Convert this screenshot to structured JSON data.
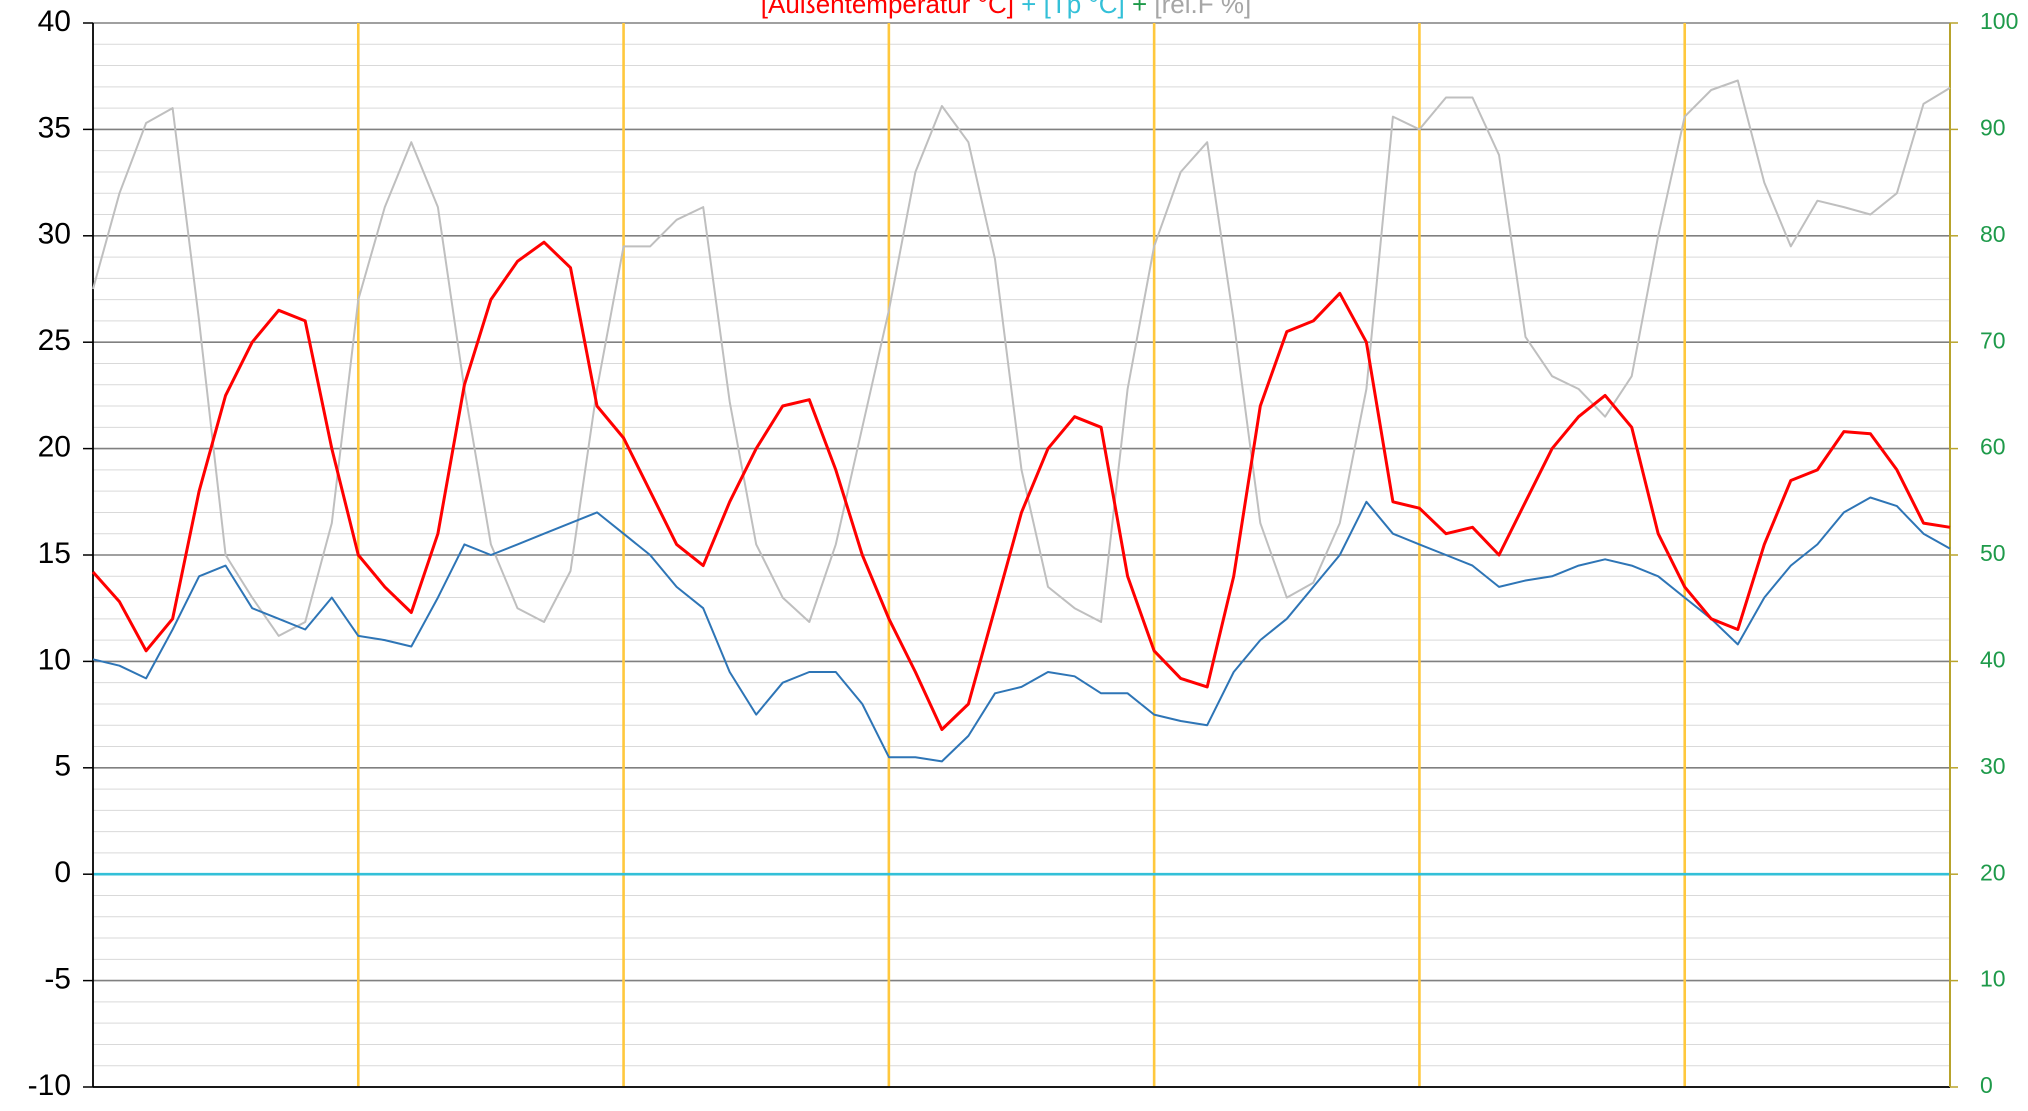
{
  "chart_data": {
    "type": "line",
    "title_parts": [
      {
        "text": "[Außentemperatur °C]",
        "color": "#ff0000"
      },
      {
        "text": " + ",
        "color": "#33c0d8"
      },
      {
        "text": "[Tp °C]",
        "color": "#33c0d8"
      },
      {
        "text": " + ",
        "color": "#1e9a4a"
      },
      {
        "text": "[rel.F %]",
        "color": "#a6a6a6"
      }
    ],
    "x": [
      0,
      0.1,
      0.2,
      0.3,
      0.4,
      0.5,
      0.6,
      0.7,
      0.8,
      0.9,
      1,
      1.1,
      1.2,
      1.3,
      1.4,
      1.5,
      1.6,
      1.7,
      1.8,
      1.9,
      2,
      2.1,
      2.2,
      2.3,
      2.4,
      2.5,
      2.6,
      2.7,
      2.8,
      2.9,
      3,
      3.1,
      3.2,
      3.3,
      3.4,
      3.5,
      3.6,
      3.7,
      3.8,
      3.9,
      4,
      4.1,
      4.2,
      4.3,
      4.4,
      4.5,
      4.6,
      4.7,
      4.8,
      4.9,
      5,
      5.1,
      5.2,
      5.3,
      5.4,
      5.5,
      5.6,
      5.7,
      5.8,
      5.9,
      6,
      6.1,
      6.2,
      6.3,
      6.4,
      6.5,
      6.6,
      6.7,
      6.8,
      6.9,
      7
    ],
    "xlim": [
      0,
      7
    ],
    "xticks": [
      0,
      1,
      2,
      3,
      4,
      5,
      6,
      7
    ],
    "xgrid_color": "#ffc83d",
    "series": [
      {
        "name": "Außentemperatur °C",
        "color": "#ff0000",
        "axis": "y",
        "values": [
          14.2,
          12.8,
          10.5,
          12,
          18,
          22.5,
          25,
          26.5,
          26,
          20,
          15,
          13.5,
          12.3,
          16,
          23,
          27,
          28.8,
          29.7,
          28.5,
          22,
          20.5,
          18,
          15.5,
          14.5,
          17.5,
          20,
          22,
          22.3,
          19,
          15,
          12,
          9.5,
          6.8,
          8,
          12.5,
          17,
          20,
          21.5,
          21,
          14,
          10.5,
          9.2,
          8.8,
          14,
          22,
          25.5,
          26,
          27.3,
          25,
          17.5,
          17.2,
          16,
          16.3,
          15,
          17.5,
          20,
          21.5,
          22.5,
          21,
          16,
          13.5,
          12,
          11.5,
          15.5,
          18.5,
          19,
          20.8,
          20.7,
          19,
          16.5,
          16.3
        ]
      },
      {
        "name": "Tp °C",
        "color": "#2e75b6",
        "axis": "y",
        "values": [
          10.1,
          9.8,
          9.2,
          11.5,
          14,
          14.5,
          12.5,
          12,
          11.5,
          13,
          11.2,
          11,
          10.7,
          13,
          15.5,
          15,
          15.5,
          16,
          16.5,
          17,
          16,
          15,
          13.5,
          12.5,
          9.5,
          7.5,
          9,
          9.5,
          9.5,
          8,
          5.5,
          5.5,
          5.3,
          6.5,
          8.5,
          8.8,
          9.5,
          9.3,
          8.5,
          8.5,
          7.5,
          7.2,
          7,
          9.5,
          11,
          12,
          13.5,
          15,
          17.5,
          16,
          15.5,
          15,
          14.5,
          13.5,
          13.8,
          14,
          14.5,
          14.8,
          14.5,
          14,
          13,
          12,
          10.8,
          13,
          14.5,
          15.5,
          17,
          17.7,
          17.3,
          16,
          15.3
        ]
      },
      {
        "name": "rel.F %",
        "color": "#bfbfbf",
        "axis": "y2",
        "values": [
          75,
          84,
          90.6,
          92,
          72,
          50,
          46,
          42.4,
          43.7,
          53,
          74,
          82.7,
          88.8,
          82.7,
          65.6,
          51,
          45,
          43.7,
          48.5,
          65.6,
          79,
          79,
          81.5,
          82.7,
          64.4,
          51,
          46,
          43.7,
          51,
          62,
          73,
          86,
          92.2,
          88.8,
          77.8,
          58,
          47,
          45,
          43.7,
          65.6,
          79,
          86,
          88.8,
          72,
          53,
          46,
          47.4,
          53,
          65.6,
          91.2,
          90,
          93,
          93,
          87.6,
          70.5,
          66.8,
          65.6,
          63,
          66.8,
          80,
          91.2,
          93.7,
          94.6,
          85,
          79,
          83.3,
          82.7,
          82,
          84,
          92.4,
          93.9
        ]
      }
    ],
    "ylim": [
      -10,
      40
    ],
    "yticks": [
      -10,
      -5,
      0,
      5,
      10,
      15,
      20,
      25,
      30,
      35,
      40
    ],
    "minor_grid_step": 1,
    "y2lim": [
      0,
      100
    ],
    "y2ticks": [
      0,
      10,
      20,
      30,
      40,
      50,
      60,
      70,
      80,
      90,
      100
    ],
    "y2_color": "#1e9a4a",
    "reference_lines": [
      {
        "value": 0,
        "color": "#33c0d8"
      }
    ],
    "grid": true
  }
}
